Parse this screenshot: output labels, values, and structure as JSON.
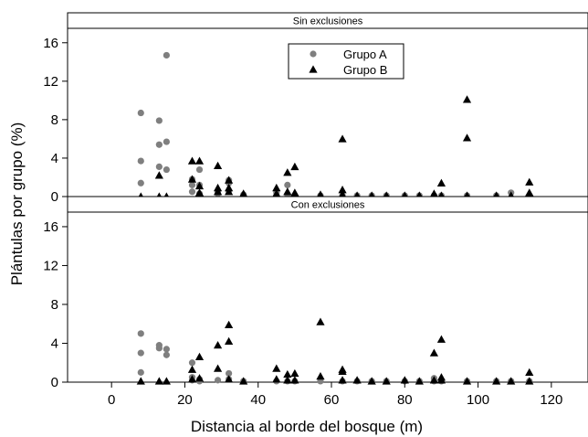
{
  "chart_data": {
    "type": "scatter",
    "xlabel": "Distancia al borde del bosque (m)",
    "ylabel": "Plántulas por grupo (%)",
    "xlim": [
      -12,
      130
    ],
    "ylim": [
      0,
      17.5
    ],
    "x_ticks": [
      0,
      20,
      40,
      60,
      80,
      100,
      120
    ],
    "y_ticks": [
      0,
      4,
      8,
      12,
      16
    ],
    "legend": {
      "position": "top-center",
      "panel": "Sin exclusiones"
    },
    "series_styles": [
      {
        "name": "Grupo A",
        "marker": "circle",
        "color": "#7f7f7f"
      },
      {
        "name": "Grupo B",
        "marker": "triangle",
        "color": "#000000"
      }
    ],
    "panels": [
      {
        "title": "Sin exclusiones",
        "series": [
          {
            "name": "Grupo A",
            "points": [
              [
                8,
                8.7
              ],
              [
                8,
                3.7
              ],
              [
                8,
                1.4
              ],
              [
                13,
                7.9
              ],
              [
                13,
                5.4
              ],
              [
                13,
                3.1
              ],
              [
                15,
                14.7
              ],
              [
                15,
                5.7
              ],
              [
                15,
                2.8
              ],
              [
                22,
                1.8
              ],
              [
                22,
                1.2
              ],
              [
                22,
                0.5
              ],
              [
                24,
                2.8
              ],
              [
                24,
                1.2
              ],
              [
                24,
                0.3
              ],
              [
                29,
                0.6
              ],
              [
                29,
                0.3
              ],
              [
                32,
                1.7
              ],
              [
                32,
                1.4
              ],
              [
                32,
                0.6
              ],
              [
                36,
                0.2
              ],
              [
                45,
                0.4
              ],
              [
                45,
                0.1
              ],
              [
                48,
                1.2
              ],
              [
                48,
                0.2
              ],
              [
                50,
                0.1
              ],
              [
                57,
                0.1
              ],
              [
                63,
                0.1
              ],
              [
                67,
                0.1
              ],
              [
                71,
                0.1
              ],
              [
                75,
                0.1
              ],
              [
                80,
                0.1
              ],
              [
                84,
                0.1
              ],
              [
                88,
                0.1
              ],
              [
                90,
                0.1
              ],
              [
                97,
                0.1
              ],
              [
                105,
                0.1
              ],
              [
                109,
                0.4
              ],
              [
                114,
                0.1
              ]
            ]
          },
          {
            "name": "Grupo B",
            "points": [
              [
                8,
                0
              ],
              [
                13,
                2.2
              ],
              [
                13,
                0
              ],
              [
                15,
                0
              ],
              [
                22,
                3.7
              ],
              [
                22,
                1.8
              ],
              [
                24,
                3.7
              ],
              [
                24,
                1.1
              ],
              [
                24,
                0.4
              ],
              [
                29,
                3.2
              ],
              [
                29,
                0.9
              ],
              [
                29,
                0.5
              ],
              [
                32,
                1.7
              ],
              [
                32,
                0.9
              ],
              [
                32,
                0.5
              ],
              [
                36,
                0.3
              ],
              [
                45,
                0.9
              ],
              [
                45,
                0.3
              ],
              [
                48,
                2.5
              ],
              [
                48,
                0.5
              ],
              [
                50,
                3.1
              ],
              [
                50,
                0.4
              ],
              [
                57,
                0.2
              ],
              [
                63,
                6.0
              ],
              [
                63,
                0.7
              ],
              [
                63,
                0.2
              ],
              [
                67,
                0.1
              ],
              [
                71,
                0.1
              ],
              [
                75,
                0.1
              ],
              [
                80,
                0.1
              ],
              [
                84,
                0.1
              ],
              [
                88,
                0.3
              ],
              [
                88,
                0.1
              ],
              [
                90,
                1.4
              ],
              [
                90,
                0.1
              ],
              [
                97,
                10.1
              ],
              [
                97,
                6.1
              ],
              [
                97,
                0.1
              ],
              [
                105,
                0.1
              ],
              [
                109,
                0.1
              ],
              [
                114,
                1.5
              ],
              [
                114,
                0.4
              ],
              [
                114,
                0.1
              ]
            ]
          }
        ]
      },
      {
        "title": "Con exclusiones",
        "series": [
          {
            "name": "Grupo A",
            "points": [
              [
                8,
                5.0
              ],
              [
                8,
                3.0
              ],
              [
                8,
                1.0
              ],
              [
                13,
                3.8
              ],
              [
                13,
                3.5
              ],
              [
                15,
                3.4
              ],
              [
                15,
                2.8
              ],
              [
                22,
                2.0
              ],
              [
                22,
                0.5
              ],
              [
                22,
                0.2
              ],
              [
                24,
                0.3
              ],
              [
                24,
                0.1
              ],
              [
                29,
                0.2
              ],
              [
                32,
                0.9
              ],
              [
                32,
                0.3
              ],
              [
                36,
                0.1
              ],
              [
                45,
                0.1
              ],
              [
                48,
                0.1
              ],
              [
                50,
                0.1
              ],
              [
                57,
                0.1
              ],
              [
                63,
                0.1
              ],
              [
                67,
                0.1
              ],
              [
                71,
                0.1
              ],
              [
                75,
                0.1
              ],
              [
                80,
                0.1
              ],
              [
                84,
                0.1
              ],
              [
                88,
                0.4
              ],
              [
                88,
                0.1
              ],
              [
                90,
                0.1
              ],
              [
                97,
                0.1
              ],
              [
                105,
                0.1
              ],
              [
                109,
                0.1
              ],
              [
                114,
                0.1
              ]
            ]
          },
          {
            "name": "Grupo B",
            "points": [
              [
                8,
                0.1
              ],
              [
                13,
                0.1
              ],
              [
                15,
                0.1
              ],
              [
                22,
                1.3
              ],
              [
                22,
                0.3
              ],
              [
                24,
                2.6
              ],
              [
                24,
                0.4
              ],
              [
                29,
                3.8
              ],
              [
                29,
                1.4
              ],
              [
                32,
                5.9
              ],
              [
                32,
                4.2
              ],
              [
                32,
                0.3
              ],
              [
                36,
                0.1
              ],
              [
                45,
                1.4
              ],
              [
                45,
                0.3
              ],
              [
                48,
                0.8
              ],
              [
                48,
                0.2
              ],
              [
                50,
                0.9
              ],
              [
                50,
                0.2
              ],
              [
                57,
                6.2
              ],
              [
                57,
                0.6
              ],
              [
                63,
                1.3
              ],
              [
                63,
                1.1
              ],
              [
                63,
                0.2
              ],
              [
                67,
                0.2
              ],
              [
                71,
                0.1
              ],
              [
                75,
                0.1
              ],
              [
                80,
                0.2
              ],
              [
                84,
                0.1
              ],
              [
                88,
                3.0
              ],
              [
                88,
                0.2
              ],
              [
                90,
                4.4
              ],
              [
                90,
                0.5
              ],
              [
                90,
                0.2
              ],
              [
                97,
                0.1
              ],
              [
                105,
                0.1
              ],
              [
                109,
                0.1
              ],
              [
                114,
                1.0
              ],
              [
                114,
                0.1
              ]
            ]
          }
        ]
      }
    ]
  }
}
